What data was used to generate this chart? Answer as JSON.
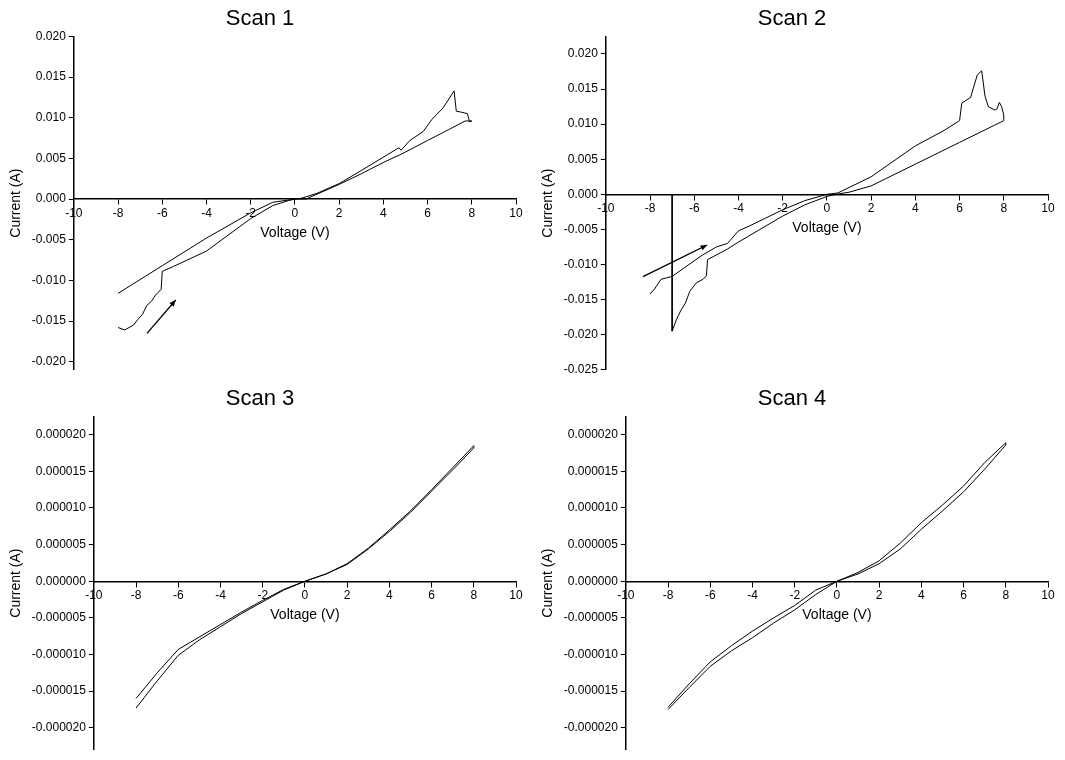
{
  "chart_data": [
    {
      "type": "line",
      "title": "Scan 1",
      "xlabel": "Voltage (V)",
      "ylabel": "Current (A)",
      "xlim": [
        -10,
        10
      ],
      "xticks": [
        -10,
        -8,
        -6,
        -4,
        -2,
        0,
        2,
        4,
        6,
        8,
        10
      ],
      "ylim": [
        -0.021,
        0.02
      ],
      "yticks": [
        {
          "value": -0.02,
          "label": "-0.020"
        },
        {
          "value": -0.015,
          "label": "-0.015"
        },
        {
          "value": -0.01,
          "label": "-0.010"
        },
        {
          "value": -0.005,
          "label": "-0.005"
        },
        {
          "value": 0,
          "label": "0.000"
        },
        {
          "value": 0.005,
          "label": "0.005"
        },
        {
          "value": 0.01,
          "label": "0.010"
        },
        {
          "value": 0.015,
          "label": "0.015"
        },
        {
          "value": 0.02,
          "label": "0.020"
        }
      ],
      "series": [
        {
          "color": "#000000",
          "x": [
            -8,
            -7.7,
            -7.5,
            -7.3,
            -7.1,
            -6.9,
            -6.7,
            -6.5,
            -6.3,
            -6.05,
            -6.0,
            -5.5,
            -4,
            -2,
            -1,
            -0.3,
            0,
            0.5,
            1,
            2,
            3,
            4,
            4.8,
            6,
            7,
            7.7,
            8,
            7.9,
            7.8,
            7.5,
            7.3,
            7.2,
            6.7,
            6.2,
            5.8,
            5.2,
            4.8,
            4.7,
            3,
            2,
            1,
            0.3,
            0,
            -1,
            -2,
            -4,
            -6,
            -8
          ],
          "values": [
            -0.0158,
            -0.0161,
            -0.0158,
            -0.0155,
            -0.0148,
            -0.0142,
            -0.0131,
            -0.0126,
            -0.0118,
            -0.0111,
            -0.0089,
            -0.0083,
            -0.0064,
            -0.0024,
            -0.0008,
            -0.0002,
            0,
            0,
            0.0006,
            0.0018,
            0.0031,
            0.0045,
            0.0055,
            0.0072,
            0.0086,
            0.0096,
            0.0096,
            0.0095,
            0.0105,
            0.0107,
            0.0108,
            0.0133,
            0.0112,
            0.0098,
            0.0083,
            0.0072,
            0.006,
            0.0063,
            0.0035,
            0.0019,
            0.0007,
            0.0001,
            0,
            -0.0004,
            -0.0017,
            -0.0048,
            -0.0082,
            -0.0116
          ]
        }
      ]
    },
    {
      "type": "line",
      "title": "Scan 2",
      "xlabel": "Voltage (V)",
      "ylabel": "Current (A)",
      "xlim": [
        -10,
        10
      ],
      "xticks": [
        -10,
        -8,
        -6,
        -4,
        -2,
        0,
        2,
        4,
        6,
        8,
        10
      ],
      "ylim": [
        -0.025,
        0.0225
      ],
      "yticks": [
        {
          "value": -0.025,
          "label": "-0.025"
        },
        {
          "value": -0.02,
          "label": "-0.020"
        },
        {
          "value": -0.015,
          "label": "-0.015"
        },
        {
          "value": -0.01,
          "label": "-0.010"
        },
        {
          "value": -0.005,
          "label": "-0.005"
        },
        {
          "value": 0,
          "label": "0.000"
        },
        {
          "value": 0.005,
          "label": "0.005"
        },
        {
          "value": 0.01,
          "label": "0.010"
        },
        {
          "value": 0.015,
          "label": "0.015"
        },
        {
          "value": 0.02,
          "label": "0.020"
        }
      ],
      "series": [
        {
          "color": "#000000",
          "x": [
            -7,
            -7,
            -6.8,
            -6.6,
            -6.4,
            -6.2,
            -5.9,
            -5.6,
            -5.45,
            -5.4,
            -4.5,
            -4,
            -2,
            -1,
            0,
            0.4,
            1,
            2,
            4,
            6,
            8,
            8,
            7.9,
            7.8,
            7.7,
            7.6,
            7.3,
            7.15,
            7.0,
            6.8,
            6.5,
            6.1,
            6.0,
            5.3,
            4,
            2,
            0.5,
            0,
            -1,
            -2,
            -3.5,
            -4,
            -4.5,
            -5,
            -5.6,
            -5.7,
            -7,
            -7.5,
            -7.8,
            -8
          ],
          "values": [
            0,
            -0.0195,
            -0.0178,
            -0.0165,
            -0.0155,
            -0.0138,
            -0.0126,
            -0.0121,
            -0.0116,
            -0.0093,
            -0.0078,
            -0.0068,
            -0.0031,
            -0.0015,
            -0.0003,
            0,
            0.0003,
            0.0012,
            0.0043,
            0.0074,
            0.0105,
            0.0113,
            0.0125,
            0.0131,
            0.0122,
            0.012,
            0.0125,
            0.014,
            0.0176,
            0.017,
            0.0138,
            0.013,
            0.0105,
            0.0091,
            0.0069,
            0.0025,
            0.0002,
            0,
            -0.0009,
            -0.0022,
            -0.0045,
            -0.0052,
            -0.007,
            -0.0075,
            -0.0086,
            -0.0088,
            -0.0117,
            -0.0121,
            -0.0135,
            -0.0142
          ]
        }
      ]
    },
    {
      "type": "line",
      "title": "Scan 3",
      "xlabel": "Voltage (V)",
      "ylabel": "Current (A)",
      "xlim": [
        -10,
        10
      ],
      "xticks": [
        -10,
        -8,
        -6,
        -4,
        -2,
        0,
        2,
        4,
        6,
        8,
        10
      ],
      "ylim": [
        -2.3e-05,
        2.25e-05
      ],
      "yticks": [
        {
          "value": -2e-05,
          "label": "-0.000020"
        },
        {
          "value": -1.5e-05,
          "label": "-0.000015"
        },
        {
          "value": -1e-05,
          "label": "-0.000010"
        },
        {
          "value": -5e-06,
          "label": "-0.000005"
        },
        {
          "value": 0,
          "label": "0.000000"
        },
        {
          "value": 5e-06,
          "label": "0.000005"
        },
        {
          "value": 1e-05,
          "label": "0.000010"
        },
        {
          "value": 1.5e-05,
          "label": "0.000015"
        },
        {
          "value": 2e-05,
          "label": "0.000020"
        }
      ],
      "series": [
        {
          "color": "#000000",
          "x": [
            -8,
            -7,
            -6,
            -5,
            -4,
            -3,
            -2,
            -1,
            0,
            1,
            2,
            3,
            4,
            5,
            6,
            7,
            8,
            8,
            7,
            6,
            5,
            4,
            3,
            2,
            1,
            0,
            -1,
            -2,
            -3,
            -4,
            -5,
            -6,
            -7,
            -8
          ],
          "values": [
            -1.73e-05,
            -1.36e-05,
            -1.01e-05,
            -8e-06,
            -6.2e-06,
            -4.4e-06,
            -2.8e-06,
            -1.2e-06,
            0,
            1e-06,
            2.3e-06,
            4.4e-06,
            6.8e-06,
            9.4e-06,
            1.23e-05,
            1.52e-05,
            1.82e-05,
            1.85e-05,
            1.55e-05,
            1.25e-05,
            9.6e-06,
            7e-06,
            4.5e-06,
            2.4e-06,
            1e-06,
            0,
            -1.1e-06,
            -2.6e-06,
            -4.2e-06,
            -5.9e-06,
            -7.6e-06,
            -9.3e-06,
            -1.25e-05,
            -1.6e-05
          ]
        }
      ]
    },
    {
      "type": "line",
      "title": "Scan 4",
      "xlabel": "Voltage (V)",
      "ylabel": "Current (A)",
      "xlim": [
        -10,
        10
      ],
      "xticks": [
        -10,
        -8,
        -6,
        -4,
        -2,
        0,
        2,
        4,
        6,
        8,
        10
      ],
      "ylim": [
        -2.3e-05,
        2.25e-05
      ],
      "yticks": [
        {
          "value": -2e-05,
          "label": "-0.000020"
        },
        {
          "value": -1.5e-05,
          "label": "-0.000015"
        },
        {
          "value": -1e-05,
          "label": "-0.000010"
        },
        {
          "value": -5e-06,
          "label": "-0.000005"
        },
        {
          "value": 0,
          "label": "0.000000"
        },
        {
          "value": 5e-06,
          "label": "0.000005"
        },
        {
          "value": 1e-05,
          "label": "0.000010"
        },
        {
          "value": 1.5e-05,
          "label": "0.000015"
        },
        {
          "value": 2e-05,
          "label": "0.000020"
        }
      ],
      "series": [
        {
          "color": "#000000",
          "x": [
            -8,
            -7,
            -6,
            -5,
            -4,
            -3,
            -2,
            -1,
            0,
            1,
            2,
            3,
            4,
            5,
            6,
            7,
            8,
            8,
            7,
            6,
            5,
            4,
            3,
            2,
            1,
            0,
            -1,
            -2,
            -3,
            -4,
            -5,
            -6,
            -7,
            -8
          ],
          "values": [
            -1.75e-05,
            -1.45e-05,
            -1.16e-05,
            -9.5e-06,
            -7.7e-06,
            -5.7e-06,
            -3.9e-06,
            -1.8e-06,
            0,
            1e-06,
            2.4e-06,
            4.4e-06,
            7.1e-06,
            9.6e-06,
            1.22e-05,
            1.53e-05,
            1.86e-05,
            1.89e-05,
            1.62e-05,
            1.3e-05,
            1.04e-05,
            8e-06,
            5.2e-06,
            2.8e-06,
            1.2e-06,
            0,
            -1.2e-06,
            -3.3e-06,
            -5e-06,
            -6.8e-06,
            -8.8e-06,
            -1.1e-05,
            -1.4e-05,
            -1.72e-05
          ]
        }
      ]
    }
  ]
}
